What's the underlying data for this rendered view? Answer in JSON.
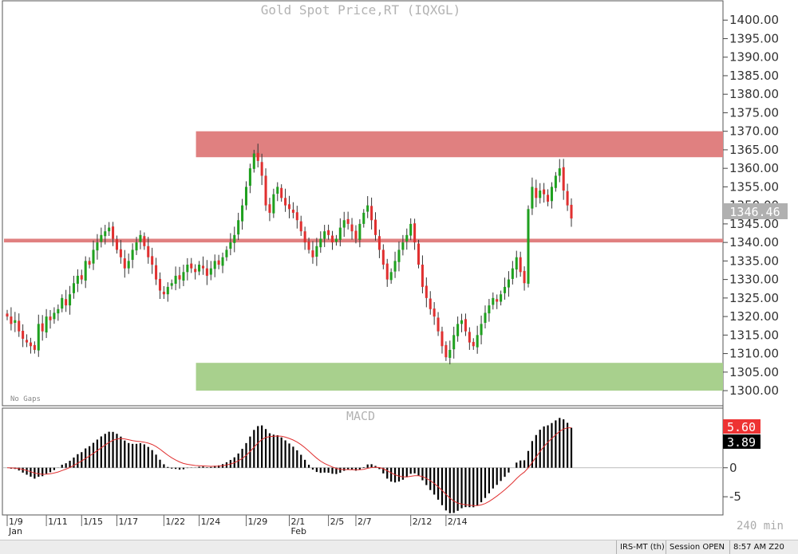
{
  "chart_data": [
    {
      "type": "candlestick",
      "title": "Gold Spot Price,RT (IQXGL)",
      "note": "No Gaps",
      "timeframe": "240 min",
      "ylim": [
        1297,
        1405
      ],
      "y_ticks": [
        "1300.00",
        "1305.00",
        "1310.00",
        "1315.00",
        "1320.00",
        "1325.00",
        "1330.00",
        "1335.00",
        "1340.00",
        "1345.00",
        "1350.00",
        "1355.00",
        "1360.00",
        "1365.00",
        "1370.00",
        "1375.00",
        "1380.00",
        "1385.00",
        "1390.00",
        "1395.00",
        "1400.00"
      ],
      "last_price": "1346.46",
      "zones": [
        {
          "name": "resistance-zone",
          "from": 1363,
          "to": 1370,
          "start": "1/24",
          "color": "#e08080"
        },
        {
          "name": "level-zone",
          "from": 1340,
          "to": 1341,
          "start": "2/13",
          "color": "#e08080"
        },
        {
          "name": "support-zone",
          "from": 1300,
          "to": 1307.5,
          "start": "1/24",
          "color": "#a8d08d"
        }
      ],
      "closes": [
        1320,
        1318,
        1319,
        1316,
        1314,
        1313,
        1312,
        1311,
        1318,
        1316,
        1320,
        1319,
        1321,
        1322,
        1325,
        1323,
        1326,
        1329,
        1331,
        1330,
        1335,
        1334,
        1338,
        1340,
        1342,
        1343,
        1344,
        1341,
        1338,
        1336,
        1333,
        1335,
        1338,
        1340,
        1342,
        1339,
        1336,
        1334,
        1330,
        1327,
        1326,
        1328,
        1329,
        1331,
        1330,
        1332,
        1334,
        1333,
        1332,
        1334,
        1333,
        1331,
        1333,
        1335,
        1334,
        1336,
        1338,
        1340,
        1342,
        1346,
        1350,
        1355,
        1360,
        1364,
        1362,
        1358,
        1350,
        1348,
        1353,
        1355,
        1352,
        1350,
        1349,
        1348,
        1346,
        1343,
        1340,
        1338,
        1336,
        1339,
        1341,
        1343,
        1342,
        1340,
        1341,
        1344,
        1346,
        1345,
        1343,
        1341,
        1345,
        1348,
        1350,
        1346,
        1342,
        1338,
        1334,
        1330,
        1332,
        1335,
        1338,
        1340,
        1342,
        1345,
        1340,
        1334,
        1328,
        1325,
        1322,
        1320,
        1316,
        1312,
        1309,
        1311,
        1315,
        1318,
        1319,
        1316,
        1313,
        1312,
        1315,
        1318,
        1321,
        1323,
        1325,
        1324,
        1326,
        1328,
        1330,
        1333,
        1336,
        1332,
        1329,
        1349,
        1355,
        1352,
        1354,
        1353,
        1351,
        1355,
        1358,
        1360,
        1354,
        1350,
        1346.46
      ],
      "macd_title": "MACD",
      "macd_ylim": [
        -8,
        10
      ],
      "macd_ticks": [
        "-5",
        "0"
      ],
      "macd_values": {
        "macd": "5.60",
        "signal": "3.89"
      },
      "macd_colors": {
        "macd": "#e02020",
        "signal": "#000000"
      },
      "x_date_labels": [
        {
          "label": "1/9",
          "bar": 0
        },
        {
          "label": "1/11",
          "bar": 10
        },
        {
          "label": "1/15",
          "bar": 19
        },
        {
          "label": "1/17",
          "bar": 28
        },
        {
          "label": "1/22",
          "bar": 40
        },
        {
          "label": "1/24",
          "bar": 49
        },
        {
          "label": "1/29",
          "bar": 61
        },
        {
          "label": "2/1",
          "bar": 72
        },
        {
          "label": "2/5",
          "bar": 82
        },
        {
          "label": "2/7",
          "bar": 89
        },
        {
          "label": "2/12",
          "bar": 103
        },
        {
          "label": "2/14",
          "bar": 112
        }
      ],
      "x_month_labels": [
        {
          "label": "Jan",
          "bar": 0
        },
        {
          "label": "Feb",
          "bar": 72
        }
      ]
    }
  ],
  "colors": {
    "up_candle": "#1fa01f",
    "down_candle": "#e03030",
    "wick": "#333333",
    "last_price_badge": "#b0b0b0",
    "macd_badge_red": "#ee3333",
    "macd_badge_black": "#000000"
  },
  "status_bar": {
    "data_source": "IRS-MT (th)",
    "session": "Session OPEN",
    "time": "8:57 AM Z20"
  }
}
